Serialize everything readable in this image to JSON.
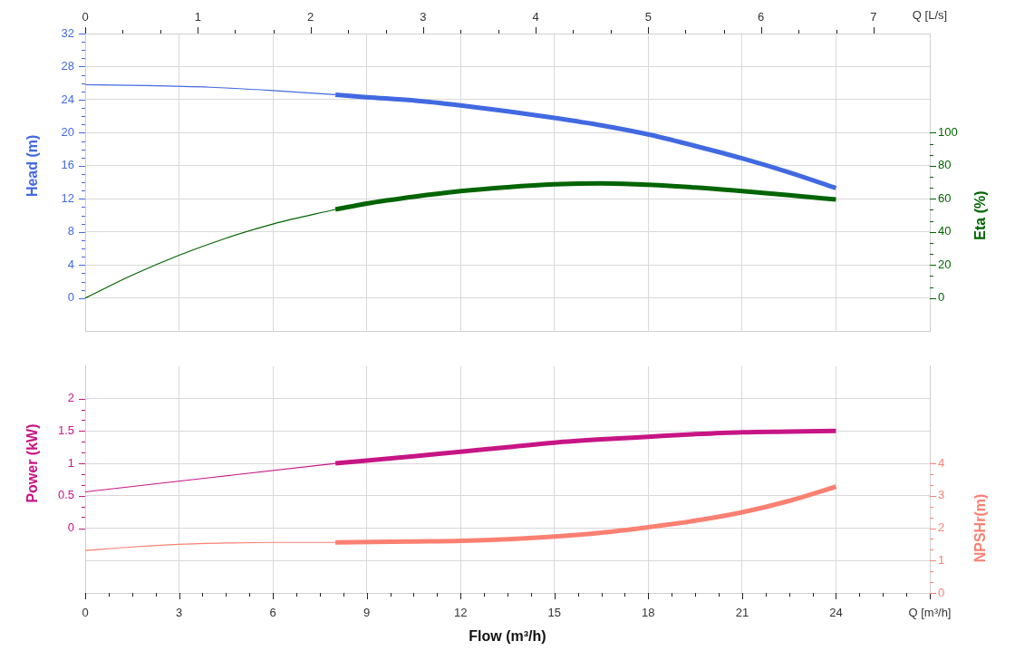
{
  "chart_data": [
    {
      "type": "line",
      "x2label": "Q [L/s]",
      "ylabel": "Head (m)",
      "y2label": "Eta (%)",
      "xlim": [
        0,
        27
      ],
      "xticks": [
        0,
        3,
        6,
        9,
        12,
        15,
        18,
        21,
        24,
        27
      ],
      "tick_labels": "y",
      "x2lim": [
        0,
        7.5
      ],
      "x2ticks": [
        0,
        {
          "value": 0.33,
          "label": null
        },
        {
          "value": 0.67,
          "label": null
        },
        1,
        {
          "value": 1.33,
          "label": null
        },
        {
          "value": 1.67,
          "label": null
        },
        2,
        {
          "value": 2.33,
          "label": null
        },
        {
          "value": 2.67,
          "label": null
        },
        3,
        {
          "value": 3.33,
          "label": null
        },
        {
          "value": 3.67,
          "label": null
        },
        4,
        {
          "value": 4.33,
          "label": null
        },
        {
          "value": 4.67,
          "label": null
        },
        5,
        {
          "value": 5.33,
          "label": null
        },
        {
          "value": 5.67,
          "label": null
        },
        6,
        {
          "value": 6.33,
          "label": null
        },
        {
          "value": 6.67,
          "label": null
        },
        7
      ],
      "ylim": [
        -4,
        32
      ],
      "yticks": [
        0,
        {
          "value": 1,
          "label": null
        },
        {
          "value": 2,
          "label": null
        },
        {
          "value": 3,
          "label": null
        },
        4,
        {
          "value": 5,
          "label": null
        },
        {
          "value": 6,
          "label": null
        },
        {
          "value": 7,
          "label": null
        },
        8,
        {
          "value": 9,
          "label": null
        },
        {
          "value": 10,
          "label": null
        },
        {
          "value": 11,
          "label": null
        },
        12,
        {
          "value": 13,
          "label": null
        },
        {
          "value": 14,
          "label": null
        },
        {
          "value": 15,
          "label": null
        },
        16,
        {
          "value": 17,
          "label": null
        },
        {
          "value": 18,
          "label": null
        },
        {
          "value": 19,
          "label": null
        },
        20,
        {
          "value": 21,
          "label": null
        },
        {
          "value": 22,
          "label": null
        },
        {
          "value": 23,
          "label": null
        },
        24,
        {
          "value": 25,
          "label": null
        },
        {
          "value": 26,
          "label": null
        },
        {
          "value": 27,
          "label": null
        },
        28,
        {
          "value": 29,
          "label": null
        },
        {
          "value": 30,
          "label": null
        },
        {
          "value": 31,
          "label": null
        },
        32
      ],
      "y2lim": [
        -20,
        160
      ],
      "y2ticks": [
        0,
        {
          "value": 6.67,
          "label": null
        },
        {
          "value": 13.33,
          "label": null
        },
        20,
        {
          "value": 26.67,
          "label": null
        },
        {
          "value": 33.33,
          "label": null
        },
        40,
        {
          "value": 46.67,
          "label": null
        },
        {
          "value": 53.33,
          "label": null
        },
        60,
        {
          "value": 66.67,
          "label": null
        },
        {
          "value": 73.33,
          "label": null
        },
        80,
        {
          "value": 86.67,
          "label": null
        },
        {
          "value": 93.33,
          "label": null
        },
        100
      ],
      "grid": true,
      "series": [
        {
          "color": "#4169e1",
          "x": [
            0,
            2,
            4,
            6,
            8
          ],
          "values": [
            25.8,
            25.7,
            25.5,
            25.1,
            24.6
          ]
        },
        {
          "color": "#4169e1",
          "x": [
            8,
            9,
            10.5,
            12,
            13.5,
            15,
            16.5,
            18,
            19.5,
            21,
            22.5,
            24
          ],
          "values": [
            24.6,
            24.3,
            23.9,
            23.3,
            22.6,
            21.8,
            20.9,
            19.8,
            18.4,
            16.9,
            15.2,
            13.3
          ]
        },
        {
          "color": "#006400",
          "axis": "y2",
          "x": [
            0,
            1.5,
            3,
            4.5,
            6,
            8
          ],
          "values": [
            0,
            13.8,
            25.9,
            36.2,
            44.8,
            53.6
          ]
        },
        {
          "color": "#006400",
          "axis": "y2",
          "x": [
            8,
            9,
            10.5,
            12,
            13.5,
            15,
            16.5,
            18,
            19.5,
            21,
            22.5,
            24
          ],
          "values": [
            53.6,
            57.2,
            61.3,
            64.7,
            67.1,
            68.8,
            69.4,
            68.5,
            66.9,
            64.7,
            62.3,
            59.6
          ]
        }
      ]
    },
    {
      "type": "line",
      "xlabel": "Flow (m³/h)",
      "ylabel": "Power (kW)",
      "y2label": "NPSHr(m)",
      "xlim": [
        0,
        27
      ],
      "xticks": [
        0,
        {
          "value": 0.75,
          "label": null
        },
        {
          "value": 1.5,
          "label": null
        },
        {
          "value": 2.25,
          "label": null
        },
        3,
        {
          "value": 3.75,
          "label": null
        },
        {
          "value": 4.5,
          "label": null
        },
        {
          "value": 5.25,
          "label": null
        },
        6,
        {
          "value": 6.75,
          "label": null
        },
        {
          "value": 7.5,
          "label": null
        },
        {
          "value": 8.25,
          "label": null
        },
        9,
        {
          "value": 9.75,
          "label": null
        },
        {
          "value": 10.5,
          "label": null
        },
        {
          "value": 11.25,
          "label": null
        },
        12,
        {
          "value": 12.75,
          "label": null
        },
        {
          "value": 13.5,
          "label": null
        },
        {
          "value": 14.25,
          "label": null
        },
        15,
        {
          "value": 15.75,
          "label": null
        },
        {
          "value": 16.5,
          "label": null
        },
        {
          "value": 17.25,
          "label": null
        },
        18,
        {
          "value": 18.75,
          "label": null
        },
        {
          "value": 19.5,
          "label": null
        },
        {
          "value": 20.25,
          "label": null
        },
        21,
        {
          "value": 21.75,
          "label": null
        },
        {
          "value": 22.5,
          "label": null
        },
        {
          "value": 23.25,
          "label": null
        },
        24,
        {
          "value": 24.75,
          "label": null
        },
        {
          "value": 25.5,
          "label": null
        },
        {
          "value": 26.25,
          "label": null
        },
        {
          "value": 27,
          "label": "Q [m³/h]"
        }
      ],
      "ylim": [
        -1,
        2.5
      ],
      "yticks": [
        0,
        {
          "value": 0.17,
          "label": null
        },
        {
          "value": 0.33,
          "label": null
        },
        0.5,
        {
          "value": 0.67,
          "label": null
        },
        {
          "value": 0.83,
          "label": null
        },
        1,
        {
          "value": 1.17,
          "label": null
        },
        {
          "value": 1.33,
          "label": null
        },
        1.5,
        {
          "value": 1.67,
          "label": null
        },
        {
          "value": 1.83,
          "label": null
        },
        2
      ],
      "y2lim": [
        0,
        7
      ],
      "y2ticks": [
        0,
        {
          "value": 0.33,
          "label": null
        },
        {
          "value": 0.67,
          "label": null
        },
        1,
        {
          "value": 1.33,
          "label": null
        },
        {
          "value": 1.67,
          "label": null
        },
        2,
        {
          "value": 2.33,
          "label": null
        },
        {
          "value": 2.67,
          "label": null
        },
        3,
        {
          "value": 3.33,
          "label": null
        },
        {
          "value": 3.67,
          "label": null
        },
        4
      ],
      "grid": true,
      "series": [
        {
          "color": "#c71585",
          "x": [
            0,
            8
          ],
          "values": [
            0.56,
            1.0
          ]
        },
        {
          "color": "#c71585",
          "x": [
            8,
            10.5,
            12,
            13.5,
            15,
            16.5,
            18,
            19.5,
            21,
            22.5,
            24
          ],
          "values": [
            1.0,
            1.11,
            1.18,
            1.25,
            1.32,
            1.37,
            1.41,
            1.45,
            1.48,
            1.49,
            1.5
          ]
        },
        {
          "color": "#fa8072",
          "axis": "y2",
          "x": [
            0,
            1.5,
            3,
            4.5,
            6,
            8
          ],
          "values": [
            1.31,
            1.42,
            1.5,
            1.54,
            1.56,
            1.56
          ]
        },
        {
          "color": "#fa8072",
          "axis": "y2",
          "x": [
            8,
            10.5,
            12,
            13.5,
            15,
            16.5,
            18,
            19.5,
            21,
            22.5,
            24
          ],
          "values": [
            1.56,
            1.59,
            1.61,
            1.66,
            1.74,
            1.86,
            2.03,
            2.23,
            2.49,
            2.84,
            3.28
          ]
        }
      ]
    }
  ]
}
